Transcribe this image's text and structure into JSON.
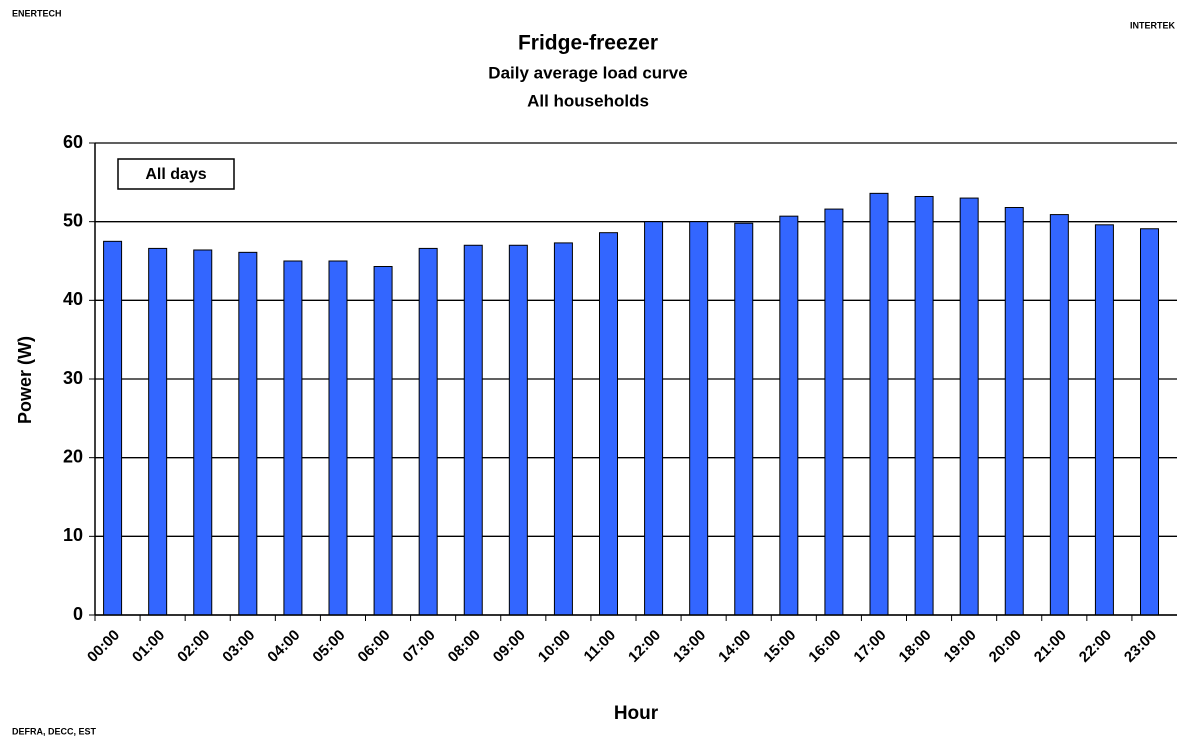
{
  "header": {
    "left": "ENERTECH",
    "right": "INTERTEK"
  },
  "footer": "DEFRA, DECC, EST",
  "chart_data": {
    "type": "bar",
    "title": "Fridge-freezer",
    "subtitle": [
      "Daily average load curve",
      "All households"
    ],
    "x_label": "Hour",
    "y_label": "Power (W)",
    "categories": [
      "00:00",
      "01:00",
      "02:00",
      "03:00",
      "04:00",
      "05:00",
      "06:00",
      "07:00",
      "08:00",
      "09:00",
      "10:00",
      "11:00",
      "12:00",
      "13:00",
      "14:00",
      "15:00",
      "16:00",
      "17:00",
      "18:00",
      "19:00",
      "20:00",
      "21:00",
      "22:00",
      "23:00"
    ],
    "series": [
      {
        "name": "All days",
        "color": "#3366ff",
        "values": [
          47.5,
          46.6,
          46.4,
          46.1,
          45.0,
          45.0,
          44.3,
          46.6,
          47.0,
          47.0,
          47.3,
          48.6,
          50.0,
          50.0,
          49.8,
          50.7,
          51.6,
          53.6,
          53.2,
          53.0,
          51.8,
          50.9,
          49.6,
          49.1
        ]
      }
    ],
    "ylim": [
      0,
      60
    ],
    "yticks": [
      0,
      10,
      20,
      30,
      40,
      50,
      60
    ],
    "grid": true,
    "legend": "upper left"
  }
}
